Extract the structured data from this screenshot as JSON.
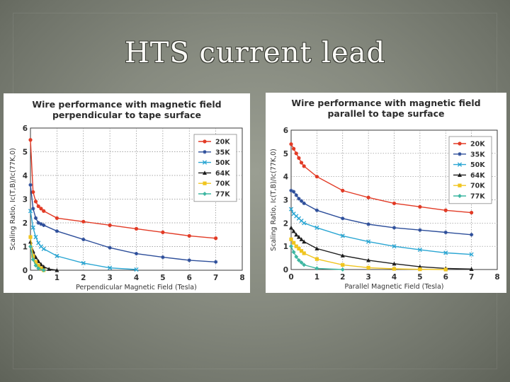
{
  "slide": {
    "title": "HTS current lead"
  },
  "chart_data": [
    {
      "type": "line",
      "title_line1": "Wire performance with magnetic field",
      "title_line2": "perpendicular to tape surface",
      "xlabel": "Perpendicular Magnetic Field (Tesla)",
      "ylabel": "Scaling Ratio, Ic(T,B)/Ic(77K,0)",
      "xlim": [
        0,
        8
      ],
      "ylim": [
        0,
        6
      ],
      "xticks": [
        "0",
        "1",
        "2",
        "3",
        "4",
        "5",
        "6",
        "7",
        "8"
      ],
      "yticks": [
        "0",
        "1",
        "2",
        "3",
        "4",
        "5",
        "6"
      ],
      "grid": true,
      "legend": "top-right",
      "series": [
        {
          "name": "20K",
          "color": "#e23b26",
          "marker": "circle",
          "x": [
            0,
            0.1,
            0.2,
            0.3,
            0.4,
            0.5,
            1,
            2,
            3,
            4,
            5,
            6,
            7
          ],
          "y": [
            5.5,
            3.3,
            2.9,
            2.7,
            2.6,
            2.5,
            2.2,
            2.05,
            1.9,
            1.75,
            1.6,
            1.45,
            1.35
          ]
        },
        {
          "name": "35K",
          "color": "#2d4e9a",
          "marker": "star",
          "x": [
            0,
            0.1,
            0.2,
            0.3,
            0.4,
            0.5,
            1,
            2,
            3,
            4,
            5,
            6,
            7
          ],
          "y": [
            3.6,
            2.6,
            2.2,
            2.0,
            1.95,
            1.9,
            1.65,
            1.3,
            0.95,
            0.7,
            0.55,
            0.42,
            0.35
          ]
        },
        {
          "name": "50K",
          "color": "#2aa6d3",
          "marker": "x",
          "x": [
            0,
            0.1,
            0.2,
            0.3,
            0.4,
            0.5,
            1,
            2,
            3,
            4
          ],
          "y": [
            2.5,
            1.8,
            1.4,
            1.15,
            1.0,
            0.9,
            0.6,
            0.3,
            0.1,
            0.03
          ]
        },
        {
          "name": "64K",
          "color": "#1e1e1e",
          "marker": "triangle",
          "x": [
            0,
            0.1,
            0.2,
            0.3,
            0.4,
            0.5,
            0.7,
            1
          ],
          "y": [
            1.2,
            0.8,
            0.55,
            0.38,
            0.25,
            0.15,
            0.05,
            0.0
          ]
        },
        {
          "name": "70K",
          "color": "#f0c51f",
          "marker": "square",
          "x": [
            0,
            0.1,
            0.2,
            0.3,
            0.4,
            0.5
          ],
          "y": [
            1.4,
            0.6,
            0.35,
            0.2,
            0.08,
            0.0
          ]
        },
        {
          "name": "77K",
          "color": "#3fb7a2",
          "marker": "diamond",
          "x": [
            0,
            0.1,
            0.2,
            0.3,
            0.5
          ],
          "y": [
            1.0,
            0.45,
            0.2,
            0.08,
            0.0
          ]
        }
      ]
    },
    {
      "type": "line",
      "title_line1": "Wire performance with magnetic field",
      "title_line2": "parallel to tape surface",
      "xlabel": "Parallel Magnetic Field (Tesla)",
      "ylabel": "Scaling Ratio, Ic(T,B)/Ic(77K,0)",
      "xlim": [
        0,
        8
      ],
      "ylim": [
        0,
        6
      ],
      "xticks": [
        "0",
        "1",
        "2",
        "3",
        "4",
        "5",
        "6",
        "7",
        "8"
      ],
      "yticks": [
        "0",
        "1",
        "2",
        "3",
        "4",
        "5",
        "6"
      ],
      "grid": true,
      "legend": "top-right",
      "series": [
        {
          "name": "20K",
          "color": "#e23b26",
          "marker": "circle",
          "x": [
            0,
            0.1,
            0.2,
            0.3,
            0.4,
            0.5,
            1,
            2,
            3,
            4,
            5,
            6,
            7
          ],
          "y": [
            5.4,
            5.2,
            5.0,
            4.8,
            4.6,
            4.45,
            4.0,
            3.4,
            3.1,
            2.85,
            2.7,
            2.55,
            2.45
          ]
        },
        {
          "name": "35K",
          "color": "#2d4e9a",
          "marker": "star",
          "x": [
            0,
            0.1,
            0.2,
            0.3,
            0.4,
            0.5,
            1,
            2,
            3,
            4,
            5,
            6,
            7
          ],
          "y": [
            3.4,
            3.35,
            3.2,
            3.05,
            2.95,
            2.85,
            2.55,
            2.2,
            1.95,
            1.8,
            1.7,
            1.6,
            1.5
          ]
        },
        {
          "name": "50K",
          "color": "#2aa6d3",
          "marker": "x",
          "x": [
            0,
            0.1,
            0.2,
            0.3,
            0.4,
            0.5,
            1,
            2,
            3,
            4,
            5,
            6,
            7
          ],
          "y": [
            2.6,
            2.4,
            2.3,
            2.2,
            2.1,
            2.0,
            1.8,
            1.45,
            1.2,
            1.0,
            0.85,
            0.72,
            0.65
          ]
        },
        {
          "name": "64K",
          "color": "#1e1e1e",
          "marker": "triangle",
          "x": [
            0,
            0.1,
            0.2,
            0.3,
            0.4,
            0.5,
            1,
            2,
            3,
            4,
            5,
            6,
            7
          ],
          "y": [
            1.8,
            1.65,
            1.5,
            1.4,
            1.3,
            1.2,
            0.9,
            0.6,
            0.4,
            0.25,
            0.12,
            0.05,
            0.02
          ]
        },
        {
          "name": "70K",
          "color": "#f0c51f",
          "marker": "square",
          "x": [
            0,
            0.1,
            0.2,
            0.3,
            0.4,
            0.5,
            1,
            2,
            3,
            4,
            5,
            6
          ],
          "y": [
            1.3,
            1.15,
            1.0,
            0.9,
            0.8,
            0.7,
            0.45,
            0.2,
            0.08,
            0.03,
            0.01,
            0.0
          ]
        },
        {
          "name": "77K",
          "color": "#3fb7a2",
          "marker": "diamond",
          "x": [
            0,
            0.1,
            0.2,
            0.3,
            0.4,
            0.5,
            1,
            2
          ],
          "y": [
            1.0,
            0.75,
            0.55,
            0.4,
            0.3,
            0.2,
            0.05,
            0.0
          ]
        }
      ]
    }
  ]
}
